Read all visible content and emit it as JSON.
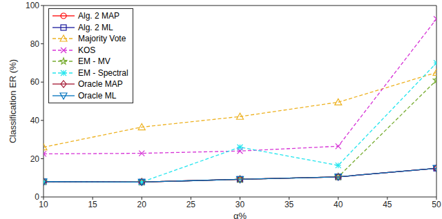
{
  "chart_data": {
    "type": "line",
    "x_label": "α%",
    "y_label": "Classification ER (%)",
    "x": [
      10,
      20,
      30,
      40,
      50
    ],
    "xlim": [
      10,
      50
    ],
    "xticks": [
      10,
      15,
      20,
      25,
      30,
      35,
      40,
      45,
      50
    ],
    "ylim": [
      0,
      100
    ],
    "yticks": [
      0,
      20,
      40,
      60,
      80,
      100
    ],
    "grid": false,
    "legend": "upper left",
    "series": [
      {
        "name": "Alg. 2 MAP",
        "color": "#ff0000",
        "marker": "circle",
        "line_style": "solid",
        "values": [
          8,
          7.8,
          9.2,
          10.5,
          15
        ]
      },
      {
        "name": "Alg. 2 ML",
        "color": "#1a1a9c",
        "marker": "square",
        "line_style": "solid",
        "values": [
          8,
          7.8,
          9.2,
          10.5,
          15
        ]
      },
      {
        "name": "Majority Vote",
        "color": "#edb120",
        "marker": "triangle",
        "line_style": "dashed",
        "values": [
          26,
          36.5,
          42,
          49.5,
          65
        ]
      },
      {
        "name": "KOS",
        "color": "#d633d6",
        "marker": "x",
        "line_style": "dashed",
        "values": [
          22.5,
          22.8,
          24,
          26.5,
          93
        ]
      },
      {
        "name": "EM - MV",
        "color": "#77ac30",
        "marker": "star",
        "line_style": "dashed",
        "values": [
          8,
          7.8,
          9.2,
          10.5,
          61
        ]
      },
      {
        "name": "EM - Spectral",
        "color": "#22e5ee",
        "marker": "asterisk",
        "line_style": "dashed",
        "values": [
          8,
          7.8,
          26,
          16.5,
          70
        ]
      },
      {
        "name": "Oracle MAP",
        "color": "#a2142f",
        "marker": "diamond",
        "line_style": "solid",
        "values": [
          8,
          7.8,
          9.2,
          10.5,
          15
        ]
      },
      {
        "name": "Oracle ML",
        "color": "#0072bd",
        "marker": "triangle-down",
        "line_style": "solid",
        "values": [
          8,
          7.8,
          9.2,
          10.5,
          15
        ]
      }
    ]
  }
}
